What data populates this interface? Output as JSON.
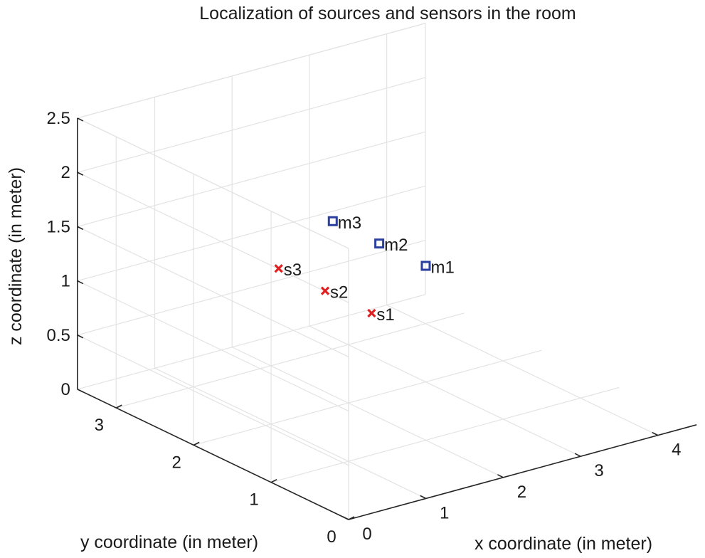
{
  "chart_data": {
    "type": "scatter",
    "dims": 3,
    "title": "Localization of sources and sensors in the room",
    "xlabel": "x coordinate (in meter)",
    "ylabel": "y coordinate (in meter)",
    "zlabel": "z coordinate (in meter)",
    "xlim": [
      0,
      4.5
    ],
    "ylim": [
      0,
      3.5
    ],
    "zlim": [
      0,
      2.5
    ],
    "xticks": [
      0,
      1,
      2,
      3,
      4
    ],
    "yticks": [
      0,
      1,
      2,
      3
    ],
    "zticks": [
      0,
      0.5,
      1,
      1.5,
      2,
      2.5
    ],
    "grid": true,
    "series": [
      {
        "marker": "square",
        "color": "#2b3f9e",
        "points": [
          {
            "label": "m1",
            "x": 2.2,
            "y": 1.2,
            "z": 1.5
          },
          {
            "label": "m2",
            "x": 2.2,
            "y": 1.8,
            "z": 1.5
          },
          {
            "label": "m3",
            "x": 2.2,
            "y": 2.4,
            "z": 1.5
          }
        ]
      },
      {
        "marker": "cross",
        "color": "#e02020",
        "points": [
          {
            "label": "s1",
            "x": 1.5,
            "y": 1.2,
            "z": 1.2
          },
          {
            "label": "s2",
            "x": 1.5,
            "y": 1.8,
            "z": 1.2
          },
          {
            "label": "s3",
            "x": 1.5,
            "y": 2.4,
            "z": 1.2
          }
        ]
      }
    ]
  }
}
